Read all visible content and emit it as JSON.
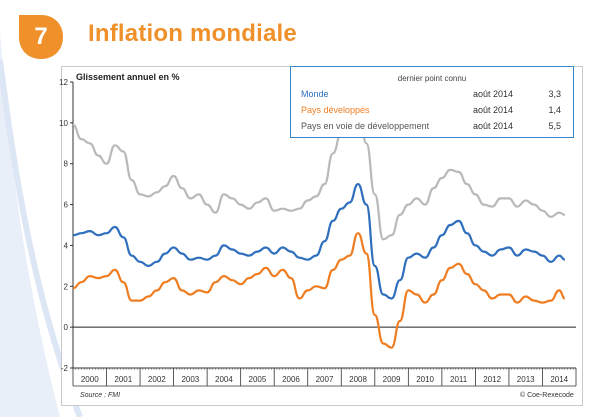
{
  "figure": {
    "number": "7",
    "title": "Inflation mondiale"
  },
  "legend": {
    "header": "dernier point connu",
    "rows": [
      {
        "name": "Monde",
        "date": "août 2014",
        "value": "3,3",
        "color": "#2f6fbd"
      },
      {
        "name": "Pays développés",
        "date": "août 2014",
        "value": "1,4",
        "color": "#ef7d22"
      },
      {
        "name": "Pays en voie de développement",
        "date": "août 2014",
        "value": "5,5",
        "color": "#555555"
      }
    ]
  },
  "source": "Source : FMI",
  "credit": "© Coe-Rexecode",
  "colors": {
    "accent": "#f0902a",
    "monde": "#2f6fbd",
    "developpes": "#ef7d22",
    "developpement": "#b9b9b9",
    "legend_border": "#3a85c8"
  },
  "chart_data": {
    "type": "line",
    "ylabel": "Glissement annuel en %",
    "xlabel": "",
    "ylim": [
      -2,
      12
    ],
    "yticks": [
      -2,
      0,
      2,
      4,
      6,
      8,
      10,
      12
    ],
    "xlim": [
      2000,
      2015
    ],
    "x_tick_labels": [
      "2000",
      "2001",
      "2002",
      "2003",
      "2004",
      "2005",
      "2006",
      "2007",
      "2008",
      "2009",
      "2010",
      "2011",
      "2012",
      "2013",
      "2014"
    ],
    "grid": false,
    "legend_position": "top-right",
    "series": [
      {
        "name": "Pays en voie de développement",
        "x": [
          2000.0,
          2000.25,
          2000.5,
          2000.75,
          2001.0,
          2001.25,
          2001.5,
          2001.75,
          2002.0,
          2002.25,
          2002.5,
          2002.75,
          2003.0,
          2003.25,
          2003.5,
          2003.75,
          2004.0,
          2004.25,
          2004.5,
          2004.75,
          2005.0,
          2005.25,
          2005.5,
          2005.75,
          2006.0,
          2006.25,
          2006.5,
          2006.75,
          2007.0,
          2007.25,
          2007.5,
          2007.75,
          2008.0,
          2008.25,
          2008.5,
          2008.75,
          2009.0,
          2009.25,
          2009.5,
          2009.75,
          2010.0,
          2010.25,
          2010.5,
          2010.75,
          2011.0,
          2011.25,
          2011.5,
          2011.75,
          2012.0,
          2012.25,
          2012.5,
          2012.75,
          2013.0,
          2013.25,
          2013.5,
          2013.75,
          2014.0,
          2014.25,
          2014.5,
          2014.67
        ],
        "y": [
          9.9,
          9.2,
          9.0,
          8.4,
          8.0,
          8.9,
          8.6,
          7.2,
          6.5,
          6.4,
          6.6,
          6.9,
          7.4,
          6.8,
          6.3,
          6.5,
          6.0,
          5.6,
          6.5,
          6.3,
          6.0,
          5.8,
          6.1,
          6.3,
          5.7,
          5.8,
          5.7,
          5.8,
          6.2,
          6.4,
          7.0,
          8.5,
          9.5,
          10.5,
          11.0,
          9.0,
          6.5,
          4.3,
          4.5,
          5.5,
          6.0,
          6.3,
          6.0,
          6.8,
          7.3,
          7.7,
          7.6,
          7.0,
          6.5,
          6.0,
          5.9,
          6.3,
          6.3,
          5.9,
          6.2,
          6.0,
          5.7,
          5.4,
          5.6,
          5.5
        ]
      },
      {
        "name": "Monde",
        "x": [
          2000.0,
          2000.25,
          2000.5,
          2000.75,
          2001.0,
          2001.25,
          2001.5,
          2001.75,
          2002.0,
          2002.25,
          2002.5,
          2002.75,
          2003.0,
          2003.25,
          2003.5,
          2003.75,
          2004.0,
          2004.25,
          2004.5,
          2004.75,
          2005.0,
          2005.25,
          2005.5,
          2005.75,
          2006.0,
          2006.25,
          2006.5,
          2006.75,
          2007.0,
          2007.25,
          2007.5,
          2007.75,
          2008.0,
          2008.25,
          2008.5,
          2008.75,
          2009.0,
          2009.25,
          2009.5,
          2009.75,
          2010.0,
          2010.25,
          2010.5,
          2010.75,
          2011.0,
          2011.25,
          2011.5,
          2011.75,
          2012.0,
          2012.25,
          2012.5,
          2012.75,
          2013.0,
          2013.25,
          2013.5,
          2013.75,
          2014.0,
          2014.25,
          2014.5,
          2014.67
        ],
        "y": [
          4.5,
          4.6,
          4.7,
          4.5,
          4.6,
          4.9,
          4.4,
          3.5,
          3.2,
          3.0,
          3.2,
          3.6,
          3.9,
          3.6,
          3.3,
          3.4,
          3.3,
          3.5,
          4.0,
          3.8,
          3.6,
          3.5,
          3.7,
          3.9,
          3.6,
          3.9,
          3.7,
          3.4,
          3.3,
          3.5,
          4.2,
          5.2,
          5.8,
          6.1,
          7.0,
          6.0,
          3.0,
          1.6,
          1.4,
          2.3,
          3.4,
          3.6,
          3.4,
          3.9,
          4.5,
          5.0,
          5.2,
          4.6,
          4.0,
          3.7,
          3.5,
          3.8,
          3.9,
          3.5,
          3.8,
          3.7,
          3.5,
          3.2,
          3.5,
          3.3
        ]
      },
      {
        "name": "Pays développés",
        "x": [
          2000.0,
          2000.25,
          2000.5,
          2000.75,
          2001.0,
          2001.25,
          2001.5,
          2001.75,
          2002.0,
          2002.25,
          2002.5,
          2002.75,
          2003.0,
          2003.25,
          2003.5,
          2003.75,
          2004.0,
          2004.25,
          2004.5,
          2004.75,
          2005.0,
          2005.25,
          2005.5,
          2005.75,
          2006.0,
          2006.25,
          2006.5,
          2006.75,
          2007.0,
          2007.25,
          2007.5,
          2007.75,
          2008.0,
          2008.25,
          2008.5,
          2008.75,
          2009.0,
          2009.25,
          2009.5,
          2009.75,
          2010.0,
          2010.25,
          2010.5,
          2010.75,
          2011.0,
          2011.25,
          2011.5,
          2011.75,
          2012.0,
          2012.25,
          2012.5,
          2012.75,
          2013.0,
          2013.25,
          2013.5,
          2013.75,
          2014.0,
          2014.25,
          2014.5,
          2014.67
        ],
        "y": [
          1.9,
          2.2,
          2.5,
          2.4,
          2.5,
          2.8,
          2.2,
          1.3,
          1.3,
          1.5,
          1.8,
          2.2,
          2.4,
          1.8,
          1.6,
          1.8,
          1.7,
          2.2,
          2.5,
          2.3,
          2.1,
          2.4,
          2.6,
          2.9,
          2.5,
          2.8,
          2.4,
          1.4,
          1.8,
          2.0,
          1.9,
          2.8,
          3.3,
          3.5,
          4.6,
          3.6,
          0.6,
          -0.8,
          -1.0,
          0.3,
          1.8,
          1.6,
          1.2,
          1.6,
          2.3,
          2.9,
          3.1,
          2.6,
          2.1,
          1.8,
          1.4,
          1.6,
          1.6,
          1.2,
          1.5,
          1.3,
          1.2,
          1.3,
          1.8,
          1.4
        ]
      }
    ]
  }
}
